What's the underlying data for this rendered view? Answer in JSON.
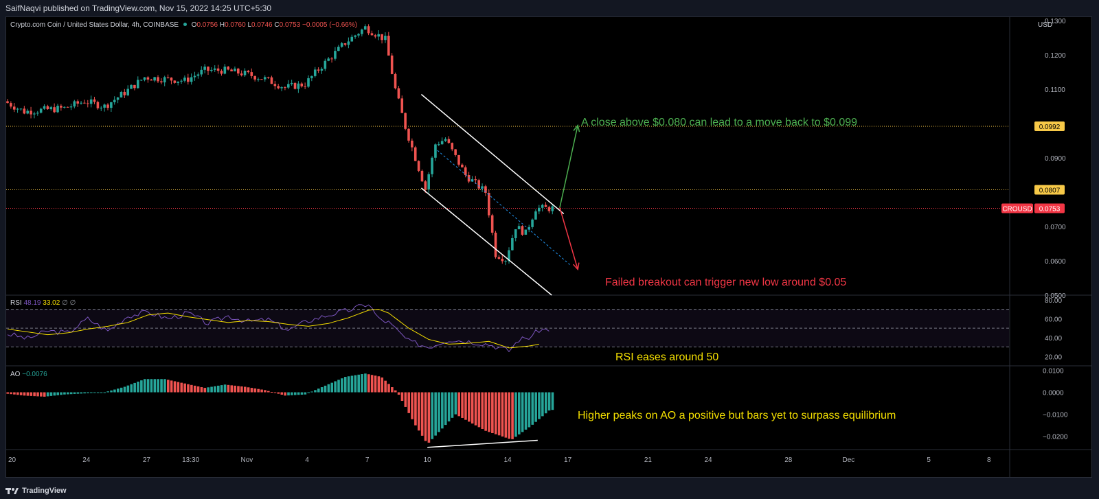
{
  "header": {
    "publisher": "SaifNaqvi published on TradingView.com, Nov 15, 2022 14:25 UTC+5:30",
    "symbol": "Crypto.com Coin / United States Dollar, 4h, COINBASE",
    "ohlc": {
      "o_label": "O",
      "o": "0.0756",
      "h_label": "H",
      "h": "0.0760",
      "l_label": "L",
      "l": "0.0746",
      "c_label": "C",
      "c": "0.0753",
      "change": "−0.0005 (−0.66%)"
    },
    "currency": "USD"
  },
  "colors": {
    "up": "#26a69a",
    "down": "#ef5350",
    "green_text": "#4caf50",
    "red_text": "#f23645",
    "yellow": "#f5e000",
    "level": "#f7c948",
    "rsi_line": "#7e57c2",
    "rsi_ma": "#f7e000"
  },
  "chart_data": [
    {
      "type": "candlestick",
      "title": "Crypto.com Coin / United States Dollar, 4h, COINBASE",
      "ylim": [
        0.05,
        0.131
      ],
      "yticks": [
        0.13,
        0.12,
        0.11,
        0.09,
        0.07,
        0.06,
        0.05
      ],
      "ytick_labels": [
        "0.1300",
        "0.1200",
        "0.1100",
        "0.0900",
        "0.0700",
        "0.0600",
        "0.0500"
      ],
      "x_ticks": [
        {
          "label": "20",
          "day": 0
        },
        {
          "label": "24",
          "day": 4
        },
        {
          "label": "27",
          "day": 7
        },
        {
          "label": "13:30",
          "day": 9.2
        },
        {
          "label": "Nov",
          "day": 12
        },
        {
          "label": "4",
          "day": 15
        },
        {
          "label": "7",
          "day": 18
        },
        {
          "label": "10",
          "day": 21
        },
        {
          "label": "14",
          "day": 25
        },
        {
          "label": "17",
          "day": 28
        },
        {
          "label": "21",
          "day": 32
        },
        {
          "label": "24",
          "day": 35
        },
        {
          "label": "28",
          "day": 39
        },
        {
          "label": "Dec",
          "day": 42
        },
        {
          "label": "5",
          "day": 46
        },
        {
          "label": "8",
          "day": 49
        }
      ],
      "price_path": [
        [
          0,
          0.1065
        ],
        [
          1,
          0.1035
        ],
        [
          2,
          0.104
        ],
        [
          3,
          0.1045
        ],
        [
          4,
          0.1065
        ],
        [
          5,
          0.105
        ],
        [
          6,
          0.109
        ],
        [
          7,
          0.1135
        ],
        [
          8,
          0.113
        ],
        [
          9,
          0.1125
        ],
        [
          10,
          0.1155
        ],
        [
          11,
          0.1155
        ],
        [
          12,
          0.1145
        ],
        [
          13,
          0.113
        ],
        [
          14,
          0.1105
        ],
        [
          15,
          0.1115
        ],
        [
          15.7,
          0.116
        ],
        [
          17,
          0.1235
        ],
        [
          18,
          0.128
        ],
        [
          19,
          0.1245
        ],
        [
          19.5,
          0.11
        ],
        [
          20,
          0.099
        ],
        [
          21,
          0.081
        ],
        [
          21.5,
          0.094
        ],
        [
          22,
          0.0955
        ],
        [
          23,
          0.085
        ],
        [
          24,
          0.08
        ],
        [
          24.5,
          0.062
        ],
        [
          25,
          0.0605
        ],
        [
          25.5,
          0.07
        ],
        [
          26,
          0.068
        ],
        [
          26.5,
          0.0753
        ]
      ],
      "levels": [
        {
          "label": "0.0992",
          "value": 0.0992,
          "style": "dotted-yellow"
        },
        {
          "label": "0.0807",
          "value": 0.0807,
          "style": "dotted-yellow"
        },
        {
          "label": "0.0753",
          "value": 0.0753,
          "style": "dotted-red",
          "tag": "CROUSD"
        }
      ],
      "channel": {
        "upper": [
          [
            20.7,
            0.1085
          ],
          [
            27.8,
            0.0737
          ]
        ],
        "lower": [
          [
            20.7,
            0.0812
          ],
          [
            27.2,
            0.05
          ]
        ],
        "mid": [
          [
            21.5,
            0.0922
          ],
          [
            28.1,
            0.0589
          ]
        ]
      },
      "arrows": [
        {
          "from": [
            27.6,
            0.0755
          ],
          "to": [
            28.5,
            0.0995
          ],
          "color": "green"
        },
        {
          "from": [
            27.6,
            0.0755
          ],
          "to": [
            28.5,
            0.0575
          ],
          "color": "red"
        }
      ],
      "annotations": {
        "bull": "A close above $0.080 can lead to a move back to $0.099",
        "bear": "Failed breakout can trigger new low around $0.05"
      }
    },
    {
      "type": "line",
      "title": "RSI",
      "legend": {
        "name": "RSI",
        "value": "48.19",
        "ma": "33.02",
        "extra": "∅ ∅"
      },
      "ylim": [
        10,
        85
      ],
      "yticks": [
        80,
        60,
        40,
        20
      ],
      "ytick_labels": [
        "80.00",
        "60.00",
        "40.00",
        "20.00"
      ],
      "bands": [
        70,
        50,
        30
      ],
      "rsi": [
        [
          0,
          44
        ],
        [
          1,
          39
        ],
        [
          2,
          47
        ],
        [
          3,
          45
        ],
        [
          4,
          60
        ],
        [
          5,
          47
        ],
        [
          6,
          63
        ],
        [
          7,
          67
        ],
        [
          8,
          60
        ],
        [
          9,
          66
        ],
        [
          10,
          55
        ],
        [
          11,
          63
        ],
        [
          12,
          57
        ],
        [
          13,
          59
        ],
        [
          14,
          48
        ],
        [
          15,
          58
        ],
        [
          16,
          64
        ],
        [
          17,
          69
        ],
        [
          18,
          76
        ],
        [
          18.5,
          60
        ],
        [
          19,
          56
        ],
        [
          20,
          36
        ],
        [
          21,
          30
        ],
        [
          22,
          38
        ],
        [
          23,
          36
        ],
        [
          24,
          33
        ],
        [
          25,
          26
        ],
        [
          25.5,
          38
        ],
        [
          26,
          40
        ],
        [
          26.5,
          48
        ],
        [
          27,
          49
        ]
      ],
      "rsi_ma": [
        [
          0,
          49
        ],
        [
          1,
          46
        ],
        [
          2,
          43
        ],
        [
          3,
          45
        ],
        [
          4,
          49
        ],
        [
          5,
          52
        ],
        [
          6,
          56
        ],
        [
          7,
          64
        ],
        [
          8,
          66
        ],
        [
          9,
          62
        ],
        [
          10,
          59
        ],
        [
          11,
          56
        ],
        [
          12,
          58
        ],
        [
          13,
          57
        ],
        [
          14,
          54
        ],
        [
          15,
          52
        ],
        [
          16,
          55
        ],
        [
          17,
          61
        ],
        [
          18,
          69
        ],
        [
          18.5,
          70
        ],
        [
          19,
          66
        ],
        [
          20,
          50
        ],
        [
          21,
          38
        ],
        [
          22,
          33
        ],
        [
          23,
          34
        ],
        [
          24,
          36
        ],
        [
          25,
          29
        ],
        [
          26,
          31
        ],
        [
          26.5,
          33
        ]
      ],
      "annotation": "RSI eases around 50"
    },
    {
      "type": "bar",
      "title": "AO",
      "legend": {
        "name": "AO",
        "value": "−0.0076"
      },
      "ylim": [
        -0.026,
        0.012
      ],
      "yticks": [
        0.01,
        0,
        -0.01,
        -0.02
      ],
      "ytick_labels": [
        "0.0100",
        "0.0000",
        "−0.0100",
        "−0.0200"
      ],
      "ao_path": [
        [
          0,
          -0.0005
        ],
        [
          1,
          -0.0015
        ],
        [
          2,
          -0.002
        ],
        [
          3,
          -0.001
        ],
        [
          4,
          -0.0005
        ],
        [
          5,
          0.0
        ],
        [
          6,
          0.0025
        ],
        [
          7,
          0.006
        ],
        [
          8,
          0.006
        ],
        [
          9,
          0.004
        ],
        [
          10,
          0.002
        ],
        [
          11,
          0.0035
        ],
        [
          12,
          0.0025
        ],
        [
          13,
          0.001
        ],
        [
          14,
          -0.0015
        ],
        [
          15,
          -0.001
        ],
        [
          16,
          0.003
        ],
        [
          17,
          0.007
        ],
        [
          18,
          0.0085
        ],
        [
          18.8,
          0.007
        ],
        [
          19.6,
          0.0
        ],
        [
          20.5,
          -0.015
        ],
        [
          21.1,
          -0.0235
        ],
        [
          22.5,
          -0.01
        ],
        [
          24,
          -0.0175
        ],
        [
          25.3,
          -0.0215
        ],
        [
          26.3,
          -0.015
        ],
        [
          27.2,
          -0.008
        ]
      ],
      "trend_line": [
        [
          21,
          -0.025
        ],
        [
          26.5,
          -0.0218
        ]
      ],
      "annotation": "Higher peaks on AO a positive but bars yet to surpass equilibrium"
    }
  ],
  "footer": {
    "brand": "TradingView"
  }
}
